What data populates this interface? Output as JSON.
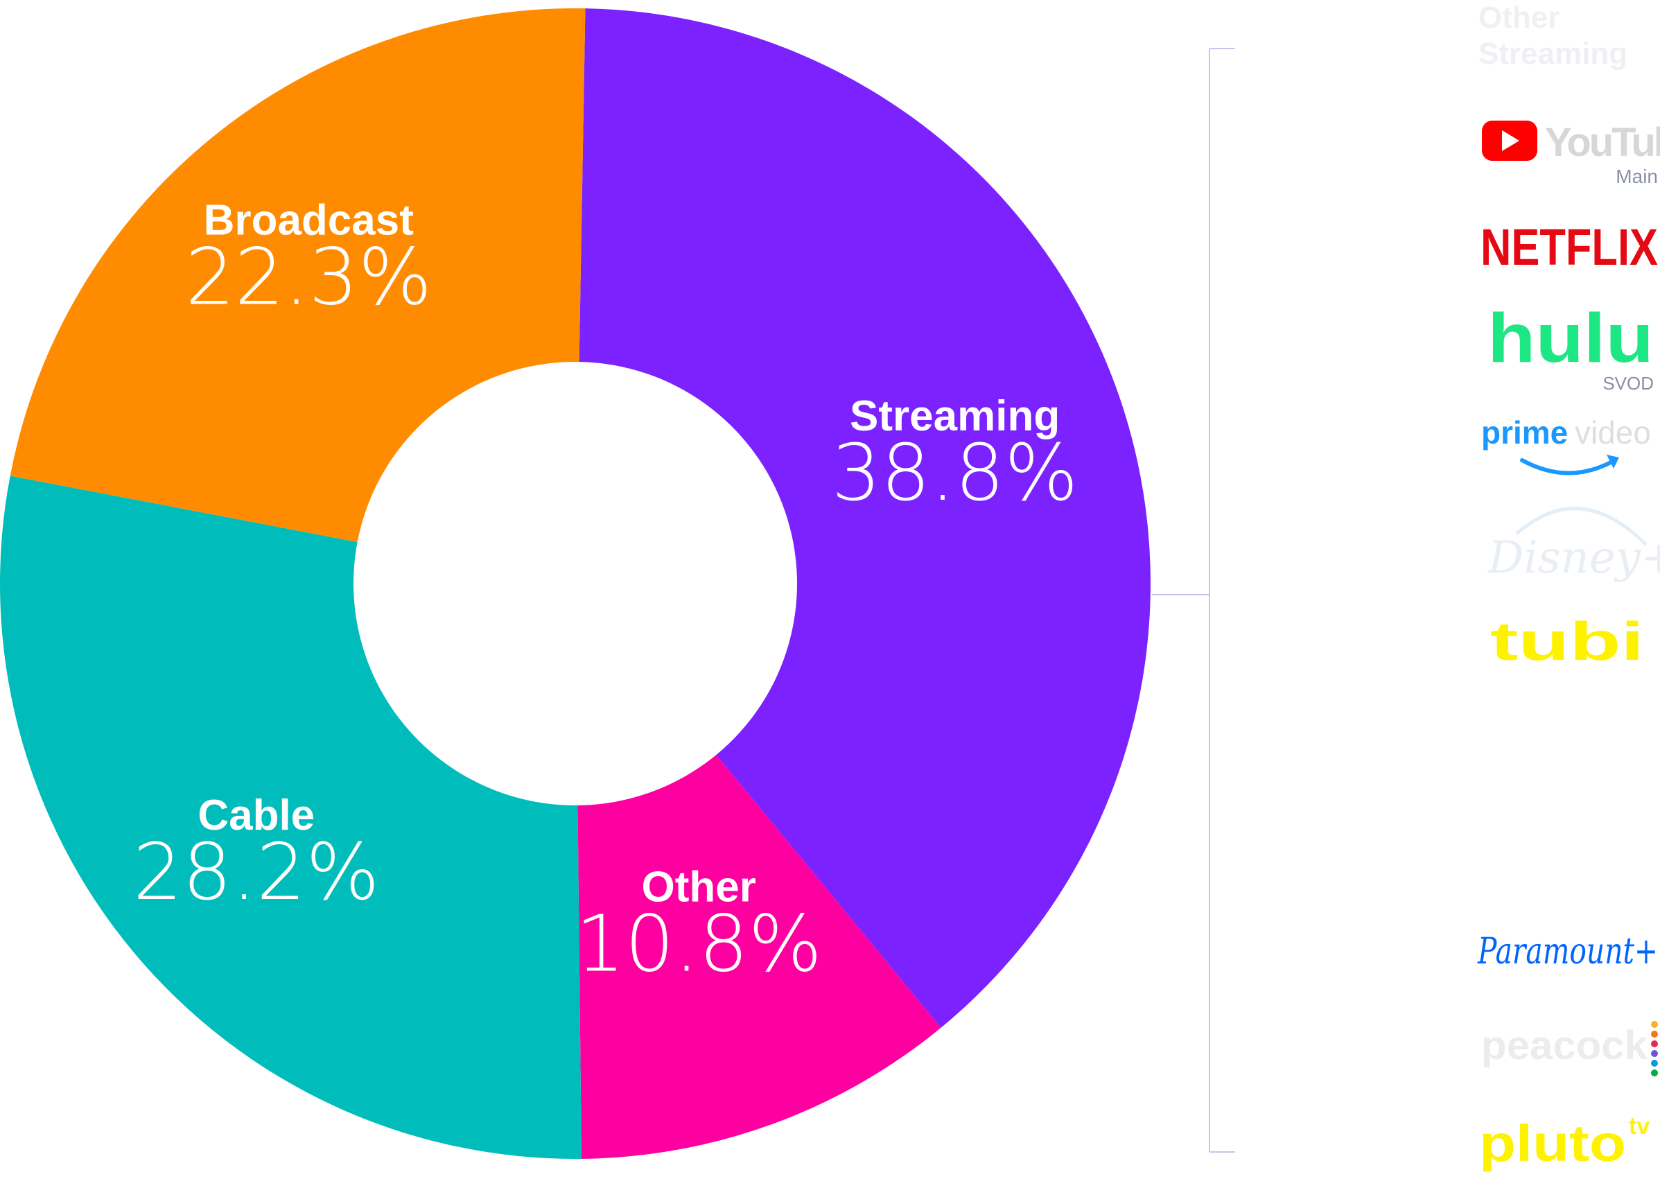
{
  "chart_data": {
    "type": "pie",
    "variant": "donut",
    "slices": [
      {
        "label": "Streaming",
        "value": 38.8,
        "value_label": "38.8%",
        "color": "#7b22ff"
      },
      {
        "label": "Other",
        "value": 10.8,
        "value_label": "10.8%",
        "color": "#ff00a0"
      },
      {
        "label": "Cable",
        "value": 28.2,
        "value_label": "28.2%",
        "color": "#00bdbb"
      },
      {
        "label": "Broadcast",
        "value": 22.3,
        "value_label": "22.3%",
        "color": "#ff8c00"
      }
    ],
    "start": "top, clockwise"
  },
  "legend": {
    "title": "Other Streaming",
    "title_lines": [
      "Other",
      "Streaming"
    ],
    "title_color": "#f0f0f4",
    "bracket_color": "#c9c3ee",
    "brands": [
      {
        "name": "YouTube",
        "sub": "Main",
        "icon": "youtube-logo",
        "color": "#ff0000",
        "text_color": "#d7d7d7"
      },
      {
        "name": "NETFLIX",
        "sub": "",
        "icon": "netflix-logo",
        "color": "#e50914"
      },
      {
        "name": "hulu",
        "sub": "SVOD",
        "icon": "hulu-logo",
        "color": "#1ce783"
      },
      {
        "name": "prime",
        "name2": "video",
        "sub": "",
        "icon": "prime-video-logo",
        "color": "#1a98ff",
        "text2_color": "#dedede"
      },
      {
        "name": "Disney+",
        "sub": "",
        "icon": "disney-plus-logo",
        "color": "#e8eef4"
      },
      {
        "name": "tubi",
        "sub": "",
        "icon": "tubi-logo",
        "color": "#fff200"
      },
      {
        "name": "Paramount+",
        "sub": "",
        "icon": "paramount-plus-logo",
        "color": "#0064ff"
      },
      {
        "name": "peacock",
        "sub": "",
        "icon": "peacock-logo",
        "color": "#ececec"
      },
      {
        "name": "pluto",
        "name2": "tv",
        "sub": "",
        "icon": "pluto-tv-logo",
        "color": "#fff200"
      }
    ]
  }
}
